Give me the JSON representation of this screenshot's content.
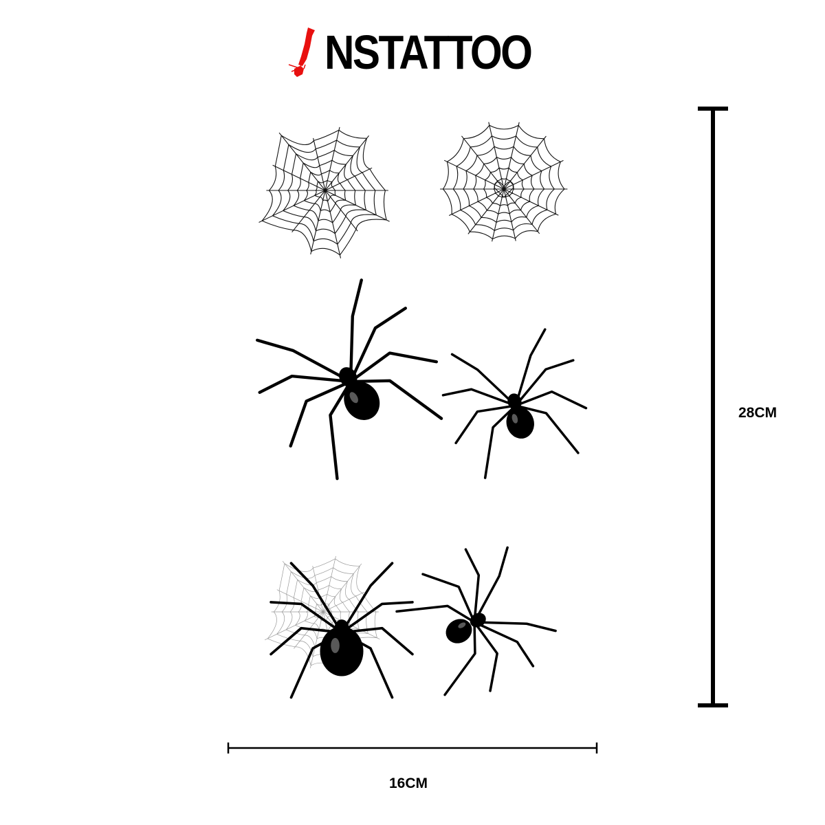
{
  "brand": {
    "name": "NSTATTOO",
    "mark_color": "#e8100f",
    "logo-icon": "red-exclamation-splash"
  },
  "designs": [
    {
      "name": "round-spiderweb"
    },
    {
      "name": "heart-spiderweb"
    },
    {
      "name": "tribal-spider"
    },
    {
      "name": "black-widow-spider"
    },
    {
      "name": "spider-on-web"
    },
    {
      "name": "crawling-spider"
    }
  ],
  "dimensions": {
    "height": "28CM",
    "width": "16CM"
  }
}
